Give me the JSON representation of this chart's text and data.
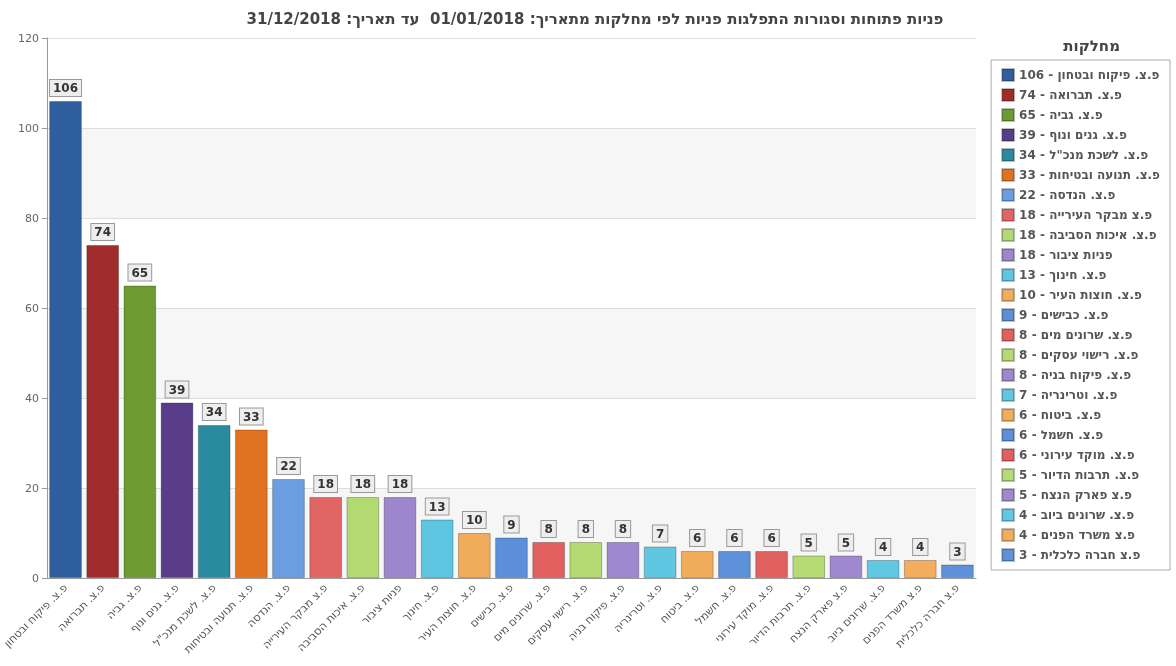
{
  "chart_data": {
    "type": "bar",
    "title": "פניות פתוחות וסגורות התפלגות פניות לפי מחלקות מתאריך: 01/01/2018  עד תאריך: 31/12/2018",
    "legend_title": "מחלקות",
    "categories": [
      "פ.צ. פיקוח ובטחון",
      "פ.צ. תברואה",
      "פ.צ. גביה",
      "פ.צ. גנים ונוף",
      "פ.צ. לשכת מנכ\"ל",
      "פ.צ. תנועה ובטיחות",
      "פ.צ. הנדסה",
      "פ.צ מבקר העירייה",
      "פ.צ. איכות הסביבה",
      "פניות ציבור",
      "פ.צ. חינוך",
      "פ.צ. חוצות העיר",
      "פ.צ. כבישים",
      "פ.צ. שרונים מים",
      "פ.צ. רישוי עסקים",
      "פ.צ. פיקוח בניה",
      "פ.צ. וטרינריה",
      "פ.צ. ביטוח",
      "פ.צ. חשמל",
      "פ.צ. מוקד עירוני",
      "פ.צ. תרבות הדיור",
      "פ.צ פארק הנצח",
      "פ.צ. שרונים ביוב",
      "פ.צ משרד הפנים",
      "פ.צ חברה כלכלית"
    ],
    "series": [
      {
        "name": "פ.צ. פיקוח ובטחון - 106",
        "color": "#2f5f9f",
        "values": [
          106,
          null,
          null,
          null,
          null,
          null,
          null,
          null,
          null,
          null,
          null,
          null,
          null,
          null,
          null,
          null,
          null,
          null,
          null,
          null,
          null,
          null,
          null,
          null,
          null
        ]
      },
      {
        "name": "פ.צ. תברואה - 74",
        "color": "#a02c2c",
        "values": [
          null,
          74,
          null,
          null,
          null,
          null,
          null,
          null,
          null,
          null,
          null,
          null,
          null,
          null,
          null,
          null,
          null,
          null,
          null,
          null,
          null,
          null,
          null,
          null,
          null
        ]
      },
      {
        "name": "פ.צ. גביה - 65",
        "color": "#6e9a32",
        "values": [
          null,
          null,
          65,
          null,
          null,
          null,
          null,
          null,
          null,
          null,
          null,
          null,
          null,
          null,
          null,
          null,
          null,
          null,
          null,
          null,
          null,
          null,
          null,
          null,
          null
        ]
      },
      {
        "name": "פ.צ. גנים ונוף - 39",
        "color": "#5a3d8a",
        "values": [
          null,
          null,
          null,
          39,
          null,
          null,
          null,
          null,
          null,
          null,
          null,
          null,
          null,
          null,
          null,
          null,
          null,
          null,
          null,
          null,
          null,
          null,
          null,
          null,
          null
        ]
      },
      {
        "name": "פ.צ. לשכת מנכ\"ל - 34",
        "color": "#2a8aa0",
        "values": [
          null,
          null,
          null,
          null,
          34,
          null,
          null,
          null,
          null,
          null,
          null,
          null,
          null,
          null,
          null,
          null,
          null,
          null,
          null,
          null,
          null,
          null,
          null,
          null,
          null
        ]
      },
      {
        "name": "פ.צ. תנועה ובטיחות - 33",
        "color": "#e0731f",
        "values": [
          null,
          null,
          null,
          null,
          null,
          33,
          null,
          null,
          null,
          null,
          null,
          null,
          null,
          null,
          null,
          null,
          null,
          null,
          null,
          null,
          null,
          null,
          null,
          null,
          null
        ]
      },
      {
        "name": "פ.צ. הנדסה - 22",
        "color": "#6a9ee0",
        "values": [
          null,
          null,
          null,
          null,
          null,
          null,
          22,
          null,
          null,
          null,
          null,
          null,
          null,
          null,
          null,
          null,
          null,
          null,
          null,
          null,
          null,
          null,
          null,
          null,
          null
        ]
      },
      {
        "name": "פ.צ מבקר העירייה - 18",
        "color": "#e06666",
        "values": [
          null,
          null,
          null,
          null,
          null,
          null,
          null,
          18,
          null,
          null,
          null,
          null,
          null,
          null,
          null,
          null,
          null,
          null,
          null,
          null,
          null,
          null,
          null,
          null,
          null
        ]
      },
      {
        "name": "פ.צ. איכות הסביבה - 18",
        "color": "#b3d973",
        "values": [
          null,
          null,
          null,
          null,
          null,
          null,
          null,
          null,
          18,
          null,
          null,
          null,
          null,
          null,
          null,
          null,
          null,
          null,
          null,
          null,
          null,
          null,
          null,
          null,
          null
        ]
      },
      {
        "name": "פניות ציבור - 18",
        "color": "#9d86cc",
        "values": [
          null,
          null,
          null,
          null,
          null,
          null,
          null,
          null,
          null,
          18,
          null,
          null,
          null,
          null,
          null,
          null,
          null,
          null,
          null,
          null,
          null,
          null,
          null,
          null,
          null
        ]
      },
      {
        "name": "פ.צ. חינוך - 13",
        "color": "#5ec6e0",
        "values": [
          null,
          null,
          null,
          null,
          null,
          null,
          null,
          null,
          null,
          null,
          13,
          null,
          null,
          null,
          null,
          null,
          null,
          null,
          null,
          null,
          null,
          null,
          null,
          null,
          null
        ]
      },
      {
        "name": "פ.צ. חוצות העיר - 10",
        "color": "#f0ac5a",
        "values": [
          null,
          null,
          null,
          null,
          null,
          null,
          null,
          null,
          null,
          null,
          null,
          10,
          null,
          null,
          null,
          null,
          null,
          null,
          null,
          null,
          null,
          null,
          null,
          null,
          null
        ]
      },
      {
        "name": "פ.צ. כבישים - 9",
        "color": "#5b8fd8",
        "values": [
          null,
          null,
          null,
          null,
          null,
          null,
          null,
          null,
          null,
          null,
          null,
          null,
          9,
          null,
          null,
          null,
          null,
          null,
          null,
          null,
          null,
          null,
          null,
          null,
          null
        ]
      },
      {
        "name": "פ.צ. שרונים מים - 8",
        "color": "#e06060",
        "values": [
          null,
          null,
          null,
          null,
          null,
          null,
          null,
          null,
          null,
          null,
          null,
          null,
          null,
          8,
          null,
          null,
          null,
          null,
          null,
          null,
          null,
          null,
          null,
          null,
          null
        ]
      },
      {
        "name": "פ.צ. רישוי עסקים - 8",
        "color": "#b4da74",
        "values": [
          null,
          null,
          null,
          null,
          null,
          null,
          null,
          null,
          null,
          null,
          null,
          null,
          null,
          null,
          8,
          null,
          null,
          null,
          null,
          null,
          null,
          null,
          null,
          null,
          null
        ]
      },
      {
        "name": "פ.צ. פיקוח בניה - 8",
        "color": "#9e87cd",
        "values": [
          null,
          null,
          null,
          null,
          null,
          null,
          null,
          null,
          null,
          null,
          null,
          null,
          null,
          null,
          null,
          8,
          null,
          null,
          null,
          null,
          null,
          null,
          null,
          null,
          null
        ]
      },
      {
        "name": "פ.צ. וטרינריה - 7",
        "color": "#5fc7e1",
        "values": [
          null,
          null,
          null,
          null,
          null,
          null,
          null,
          null,
          null,
          null,
          null,
          null,
          null,
          null,
          null,
          null,
          7,
          null,
          null,
          null,
          null,
          null,
          null,
          null,
          null
        ]
      },
      {
        "name": "פ.צ. ביטוח - 6",
        "color": "#f1ad5b",
        "values": [
          null,
          null,
          null,
          null,
          null,
          null,
          null,
          null,
          null,
          null,
          null,
          null,
          null,
          null,
          null,
          null,
          null,
          6,
          null,
          null,
          null,
          null,
          null,
          null,
          null
        ]
      },
      {
        "name": "פ.צ. חשמל - 6",
        "color": "#5c90d9",
        "values": [
          null,
          null,
          null,
          null,
          null,
          null,
          null,
          null,
          null,
          null,
          null,
          null,
          null,
          null,
          null,
          null,
          null,
          null,
          6,
          null,
          null,
          null,
          null,
          null,
          null
        ]
      },
      {
        "name": "פ.צ. מוקד עירוני - 6",
        "color": "#e16161",
        "values": [
          null,
          null,
          null,
          null,
          null,
          null,
          null,
          null,
          null,
          null,
          null,
          null,
          null,
          null,
          null,
          null,
          null,
          null,
          null,
          6,
          null,
          null,
          null,
          null,
          null
        ]
      },
      {
        "name": "פ.צ. תרבות הדיור - 5",
        "color": "#b5db75",
        "values": [
          null,
          null,
          null,
          null,
          null,
          null,
          null,
          null,
          null,
          null,
          null,
          null,
          null,
          null,
          null,
          null,
          null,
          null,
          null,
          null,
          5,
          null,
          null,
          null,
          null
        ]
      },
      {
        "name": "פ.צ פארק הנצח - 5",
        "color": "#9f88ce",
        "values": [
          null,
          null,
          null,
          null,
          null,
          null,
          null,
          null,
          null,
          null,
          null,
          null,
          null,
          null,
          null,
          null,
          null,
          null,
          null,
          null,
          null,
          5,
          null,
          null,
          null
        ]
      },
      {
        "name": "פ.צ. שרונים ביוב - 4",
        "color": "#60c8e2",
        "values": [
          null,
          null,
          null,
          null,
          null,
          null,
          null,
          null,
          null,
          null,
          null,
          null,
          null,
          null,
          null,
          null,
          null,
          null,
          null,
          null,
          null,
          null,
          4,
          null,
          null
        ]
      },
      {
        "name": "פ.צ משרד הפנים - 4",
        "color": "#f2ae5c",
        "values": [
          null,
          null,
          null,
          null,
          null,
          null,
          null,
          null,
          null,
          null,
          null,
          null,
          null,
          null,
          null,
          null,
          null,
          null,
          null,
          null,
          null,
          null,
          null,
          4,
          null
        ]
      },
      {
        "name": "פ.צ חברה כלכלית - 3",
        "color": "#5d91da",
        "values": [
          null,
          null,
          null,
          null,
          null,
          null,
          null,
          null,
          null,
          null,
          null,
          null,
          null,
          null,
          null,
          null,
          null,
          null,
          null,
          null,
          null,
          null,
          null,
          null,
          3
        ]
      }
    ],
    "stacked": true,
    "ylim": [
      0,
      120
    ],
    "yticks": [
      0,
      20,
      40,
      60,
      80,
      100,
      120
    ],
    "grid": "y",
    "legend": "right",
    "data_labels": true
  }
}
